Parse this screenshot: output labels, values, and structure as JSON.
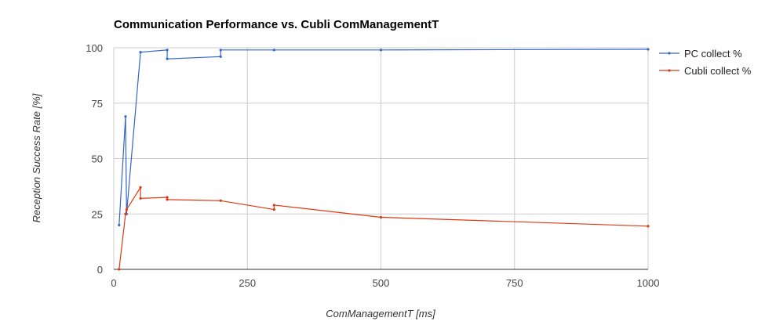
{
  "chart_data": {
    "type": "line",
    "title": "Communication Performance vs. Cubli ComManagementT",
    "xlabel": "ComManagementT [ms]",
    "ylabel": "Reception Success Rate [%]",
    "xlim": [
      0,
      1000
    ],
    "ylim": [
      0,
      100
    ],
    "xticks": [
      "0",
      "250",
      "500",
      "750",
      "1000"
    ],
    "yticks": [
      "0",
      "25",
      "50",
      "75",
      "100"
    ],
    "grid": true,
    "legend": "right",
    "series": [
      {
        "name": "PC collect %",
        "color": "#3366cc",
        "points": [
          [
            10,
            20
          ],
          [
            22,
            69
          ],
          [
            24,
            25
          ],
          [
            50,
            98
          ],
          [
            100,
            99
          ],
          [
            100,
            95
          ],
          [
            200,
            96
          ],
          [
            200,
            99
          ],
          [
            300,
            99
          ],
          [
            500,
            99
          ],
          [
            1000,
            99.3
          ]
        ]
      },
      {
        "name": "Cubli collect %",
        "color": "#dc3912",
        "points": [
          [
            10,
            0
          ],
          [
            22,
            25
          ],
          [
            24,
            27
          ],
          [
            50,
            37
          ],
          [
            50,
            32
          ],
          [
            100,
            32.5
          ],
          [
            100,
            31.5
          ],
          [
            200,
            31
          ],
          [
            300,
            27
          ],
          [
            300,
            29
          ],
          [
            500,
            23.5
          ],
          [
            1000,
            19.5
          ]
        ]
      }
    ]
  }
}
